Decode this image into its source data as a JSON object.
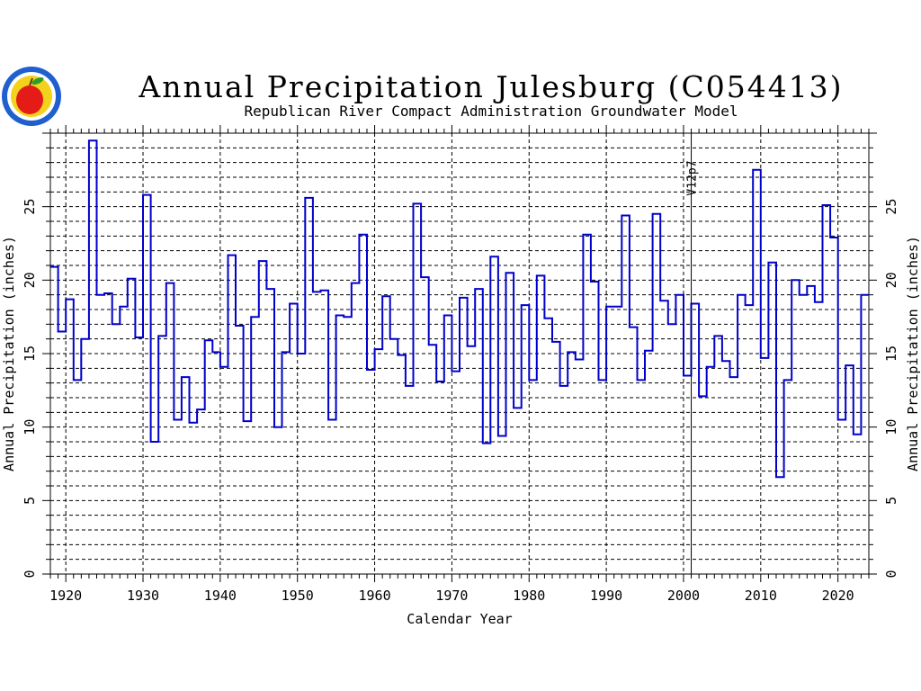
{
  "logo": {
    "icon": "apple-seal-icon",
    "colors": {
      "ring": "#1f5fd0",
      "apple": "#e41b17",
      "leaf": "#2a9d2a",
      "disc": "#f2d21b"
    }
  },
  "chart_data": {
    "type": "step",
    "title": "Annual Precipitation Julesburg (C054413)",
    "subtitle": "Republican River Compact Administration Groundwater Model",
    "xlabel": "Calendar Year",
    "ylabel": "Annual Precipitation (inches)",
    "xlim": [
      1918,
      2024
    ],
    "ylim": [
      0,
      30
    ],
    "x_ticks": [
      1920,
      1930,
      1940,
      1950,
      1960,
      1970,
      1980,
      1990,
      2000,
      2010,
      2020
    ],
    "y_ticks": [
      0,
      5,
      10,
      15,
      20,
      25
    ],
    "grid": true,
    "line_color": "#0000cc",
    "annotation": {
      "text": "V12p7",
      "year": 2001
    },
    "series": [
      {
        "years": [
          1918,
          1919,
          1920,
          1921,
          1922,
          1923,
          1924,
          1925,
          1926,
          1927,
          1928,
          1929,
          1930,
          1931,
          1932,
          1933,
          1934,
          1935,
          1936,
          1937,
          1938,
          1939,
          1940,
          1941,
          1942,
          1943,
          1944,
          1945,
          1946,
          1947,
          1948,
          1949,
          1950,
          1951,
          1952,
          1953,
          1954,
          1955,
          1956,
          1957,
          1958,
          1959,
          1960,
          1961,
          1962,
          1963,
          1964,
          1965,
          1966,
          1967,
          1968,
          1969,
          1970,
          1971,
          1972,
          1973,
          1974,
          1975,
          1976,
          1977,
          1978,
          1979,
          1980,
          1981,
          1982,
          1983,
          1984,
          1985,
          1986,
          1987,
          1988,
          1989,
          1990,
          1991,
          1992,
          1993,
          1994,
          1995,
          1996,
          1997,
          1998,
          1999,
          2000,
          2001,
          2002,
          2003,
          2004,
          2005,
          2006,
          2007,
          2008,
          2009,
          2010,
          2011,
          2012,
          2013,
          2014,
          2015,
          2016,
          2017,
          2018,
          2019,
          2020,
          2021,
          2022,
          2023
        ],
        "values": [
          20.9,
          16.5,
          18.7,
          13.2,
          16.0,
          29.5,
          19.0,
          19.1,
          17.0,
          18.2,
          20.1,
          16.1,
          25.8,
          9.0,
          16.2,
          19.8,
          10.5,
          13.4,
          10.3,
          11.2,
          15.9,
          15.1,
          14.1,
          21.7,
          16.9,
          10.4,
          17.5,
          21.3,
          19.4,
          10.0,
          15.1,
          18.4,
          15.0,
          25.6,
          19.2,
          19.3,
          10.5,
          17.6,
          17.5,
          19.8,
          23.1,
          13.9,
          15.3,
          18.9,
          16.0,
          14.9,
          12.8,
          25.2,
          20.2,
          15.6,
          13.1,
          17.6,
          13.8,
          18.8,
          15.5,
          19.4,
          8.9,
          21.6,
          9.4,
          20.5,
          11.3,
          18.3,
          13.2,
          20.3,
          17.4,
          15.8,
          12.8,
          15.1,
          14.6,
          23.1,
          19.9,
          13.2,
          18.2,
          18.2,
          24.4,
          16.8,
          13.2,
          15.2,
          24.5,
          18.6,
          17.0,
          19.0,
          13.5,
          18.4,
          12.1,
          14.1,
          16.2,
          14.5,
          13.4,
          19.0,
          18.3,
          27.5,
          14.7,
          21.2,
          6.6,
          13.2,
          20.0,
          19.0,
          19.6,
          18.5,
          25.1,
          22.9,
          10.5,
          14.2,
          9.5,
          19.0
        ]
      }
    ]
  }
}
